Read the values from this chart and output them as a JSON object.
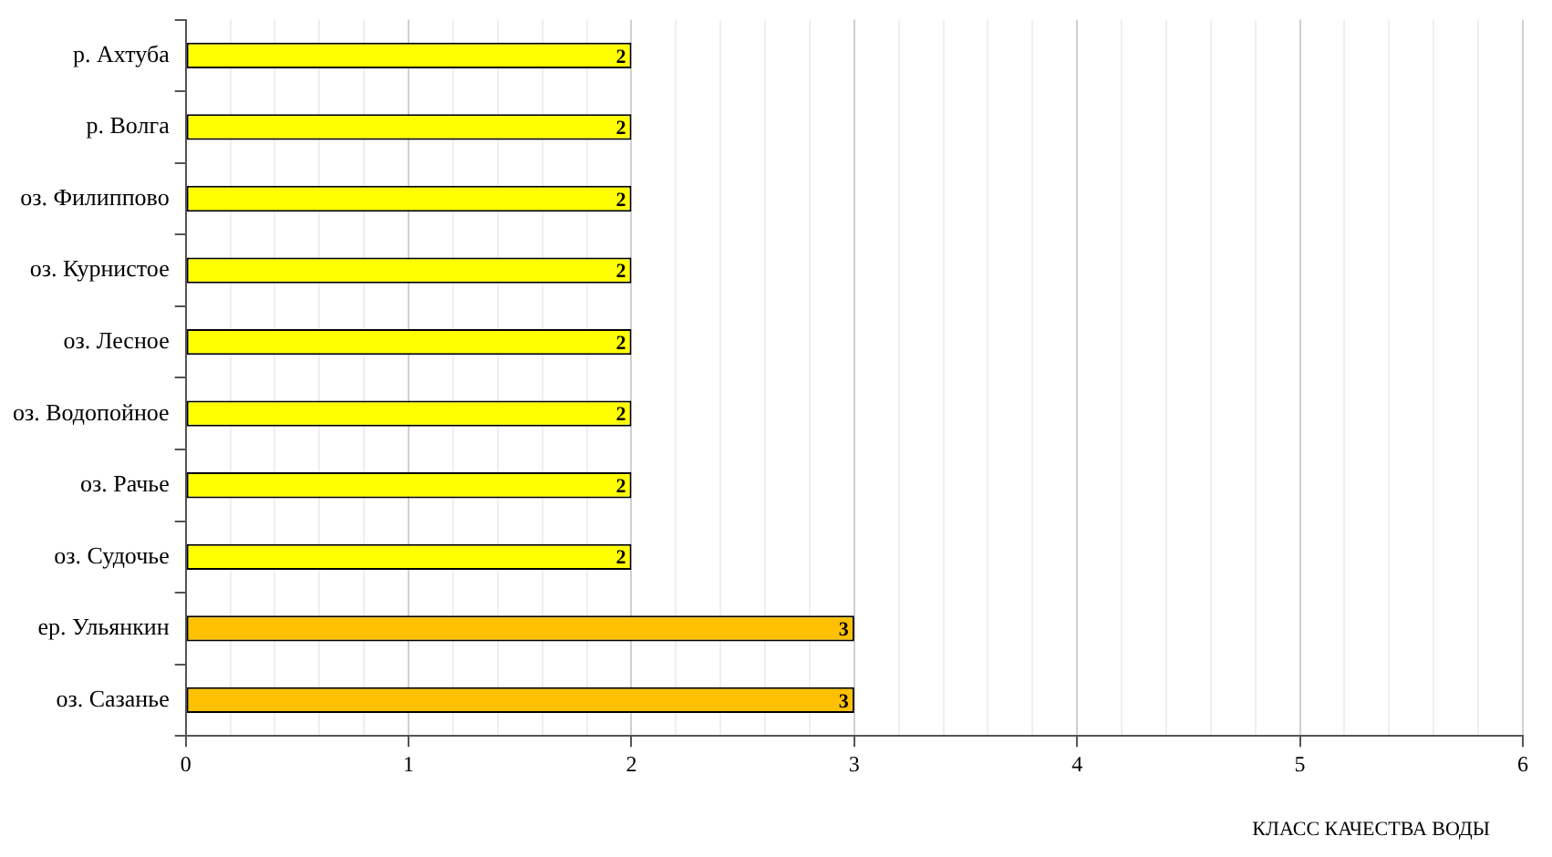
{
  "chart_data": {
    "type": "bar",
    "orientation": "horizontal",
    "xlabel": "КЛАСС КАЧЕСТВА ВОДЫ",
    "categories": [
      "р. Ахтуба",
      "р. Волга",
      "оз. Филиппово",
      "оз. Курнистое",
      "оз. Лесное",
      "оз. Водопойное",
      "оз. Рачье",
      "оз. Судочье",
      "ер. Ульянкин",
      "оз. Сазанье"
    ],
    "values": [
      2,
      2,
      2,
      2,
      2,
      2,
      2,
      2,
      3,
      3
    ],
    "colors": [
      "#ffff00",
      "#ffff00",
      "#ffff00",
      "#ffff00",
      "#ffff00",
      "#ffff00",
      "#ffff00",
      "#ffff00",
      "#ffc000",
      "#ffc000"
    ],
    "xlim": [
      0,
      6
    ],
    "xticks": [
      0,
      {
        "value": 0.2,
        "label": null
      },
      {
        "value": 0.4,
        "label": null
      },
      {
        "value": 0.6,
        "label": null
      },
      {
        "value": 0.8,
        "label": null
      },
      1,
      {
        "value": 1.2,
        "label": null
      },
      {
        "value": 1.4,
        "label": null
      },
      {
        "value": 1.6,
        "label": null
      },
      {
        "value": 1.8,
        "label": null
      },
      2,
      {
        "value": 2.2,
        "label": null
      },
      {
        "value": 2.4,
        "label": null
      },
      {
        "value": 2.6,
        "label": null
      },
      {
        "value": 2.8,
        "label": null
      },
      3,
      {
        "value": 3.2,
        "label": null
      },
      {
        "value": 3.4,
        "label": null
      },
      {
        "value": 3.6,
        "label": null
      },
      {
        "value": 3.8,
        "label": null
      },
      4,
      {
        "value": 4.2,
        "label": null
      },
      {
        "value": 4.4,
        "label": null
      },
      {
        "value": 4.6,
        "label": null
      },
      {
        "value": 4.8,
        "label": null
      },
      5,
      {
        "value": 5.2,
        "label": null
      },
      {
        "value": 5.4,
        "label": null
      },
      {
        "value": 5.6,
        "label": null
      },
      {
        "value": 5.8,
        "label": null
      },
      6
    ],
    "grid": "x",
    "data_labels": true,
    "legend": false
  }
}
